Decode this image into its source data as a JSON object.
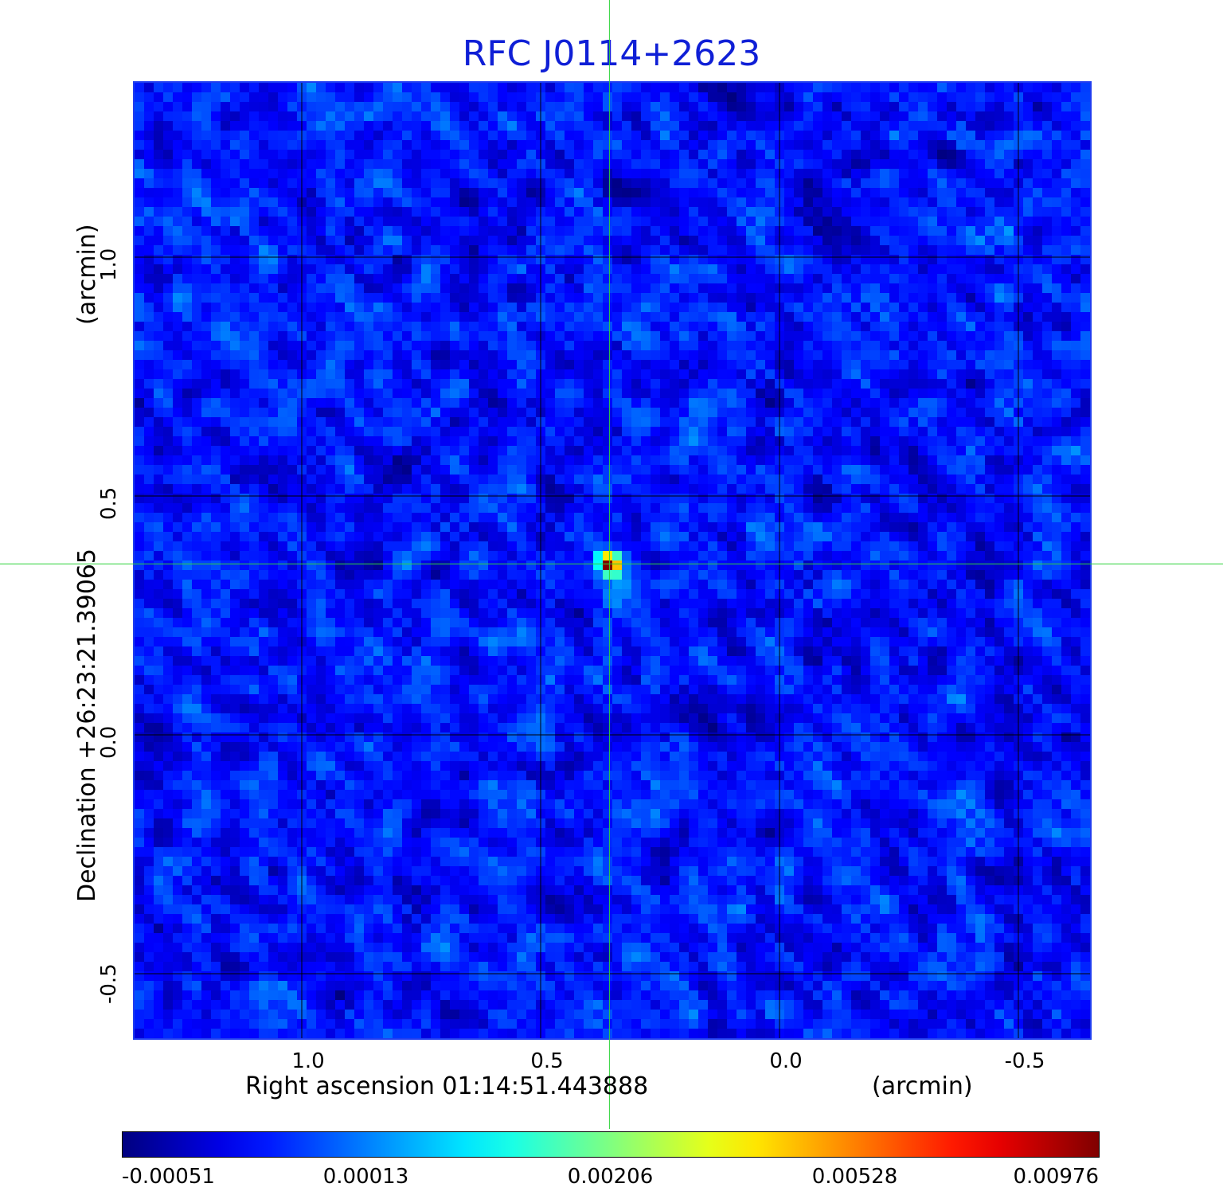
{
  "chart_data": {
    "type": "heatmap",
    "title": "RFC J0114+2623",
    "xlabel": "Right ascension  01:14:51.443888",
    "xunit": "(arcmin)",
    "ylabel": "Declination  +26:23:21.39065",
    "yunit": "(arcmin)",
    "xlim": [
      1.35,
      -0.65
    ],
    "ylim": [
      -0.635,
      1.365
    ],
    "x_ticks": [
      1.0,
      0.5,
      0.0,
      -0.5
    ],
    "x_tick_labels": [
      "1.0",
      "0.5",
      "0.0",
      "-0.5"
    ],
    "y_ticks": [
      1.0,
      0.5,
      0.0,
      -0.5
    ],
    "y_tick_labels": [
      "1.0",
      "0.5",
      "0.0",
      "-0.5"
    ],
    "grid": true,
    "source_position": {
      "x": 0.356,
      "y": 0.358
    },
    "source_peak": 0.00976,
    "colorbar": {
      "colormap": "jet",
      "ticks": [
        -0.00051,
        0.00013,
        0.00206,
        0.00528,
        0.00976
      ],
      "tick_labels": [
        "-0.00051",
        "0.00013",
        "0.00206",
        "0.00528",
        "0.00976"
      ],
      "placement": "bottom"
    },
    "crosshair_color": "#2fd33a",
    "frame_color": "#1f3df0",
    "grid_color": "#000000"
  }
}
